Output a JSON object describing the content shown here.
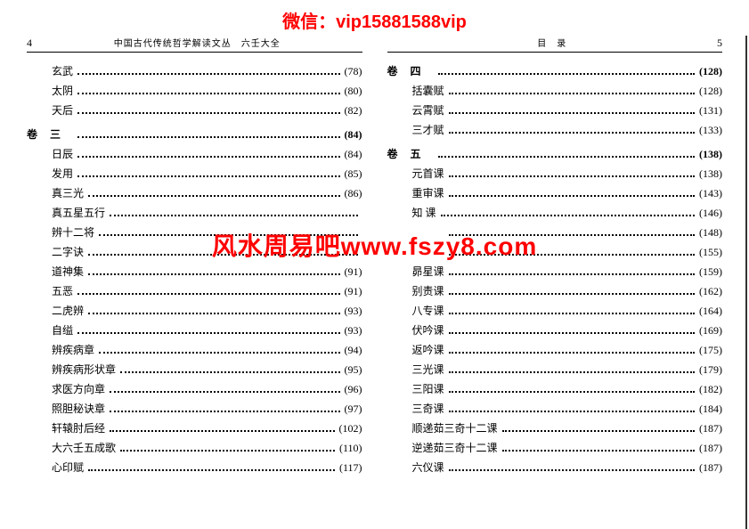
{
  "watermarks": {
    "top": "微信：vip15881588vip",
    "mid": "风水周易吧www.fszy8.com"
  },
  "left_page": {
    "num": "4",
    "header": "中国古代传统哲学解读文丛　六壬大全",
    "sections": [
      {
        "heading": null,
        "items": [
          {
            "label": "玄武",
            "page": "(78)"
          },
          {
            "label": "太阴",
            "page": "(80)"
          },
          {
            "label": "天后",
            "page": "(82)"
          }
        ]
      },
      {
        "heading": {
          "label": "卷三",
          "page": "(84)"
        },
        "items": [
          {
            "label": "日辰",
            "page": "(84)"
          },
          {
            "label": "发用",
            "page": "(85)"
          },
          {
            "label": "真三光",
            "page": "(86)"
          },
          {
            "label": "真五星五行",
            "page": " "
          },
          {
            "label": "辨十二将",
            "page": " "
          },
          {
            "label": "二字诀",
            "page": " "
          },
          {
            "label": "道神集",
            "page": "(91)"
          },
          {
            "label": "五恶",
            "page": "(91)"
          },
          {
            "label": "二虎辨",
            "page": "(93)"
          },
          {
            "label": "自缢",
            "page": "(93)"
          },
          {
            "label": "辨疾病章",
            "page": "(94)"
          },
          {
            "label": "辨疾病形状章",
            "page": "(95)"
          },
          {
            "label": "求医方向章",
            "page": "(96)"
          },
          {
            "label": "照胆秘诀章",
            "page": "(97)"
          },
          {
            "label": "轩辕肘后经",
            "page": "(102)"
          },
          {
            "label": "大六壬五成歌",
            "page": "(110)"
          },
          {
            "label": "心印赋",
            "page": "(117)"
          }
        ]
      }
    ]
  },
  "right_page": {
    "num": "5",
    "header": "目　录",
    "sections": [
      {
        "heading": {
          "label": "卷四",
          "page": "(128)"
        },
        "items": [
          {
            "label": "括囊赋",
            "page": "(128)"
          },
          {
            "label": "云霄赋",
            "page": "(131)"
          },
          {
            "label": "三才赋",
            "page": "(133)"
          }
        ]
      },
      {
        "heading": {
          "label": "卷五",
          "page": "(138)"
        },
        "items": [
          {
            "label": "元首课",
            "page": "(138)"
          },
          {
            "label": "重审课",
            "page": "(143)"
          },
          {
            "label": "知 课",
            "page": "(146)"
          },
          {
            "label": "　　　",
            "page": "(148)"
          },
          {
            "label": "　　　",
            "page": "(155)"
          },
          {
            "label": "昴星课",
            "page": "(159)"
          },
          {
            "label": "别责课",
            "page": "(162)"
          },
          {
            "label": "八专课",
            "page": "(164)"
          },
          {
            "label": "伏吟课",
            "page": "(169)"
          },
          {
            "label": "返吟课",
            "page": "(175)"
          },
          {
            "label": "三光课",
            "page": "(179)"
          },
          {
            "label": "三阳课",
            "page": "(182)"
          },
          {
            "label": "三奇课",
            "page": "(184)"
          },
          {
            "label": "顺递茹三奇十二课",
            "page": "(187)"
          },
          {
            "label": "逆递茹三奇十二课",
            "page": "(187)"
          },
          {
            "label": "六仪课",
            "page": "(187)"
          }
        ]
      }
    ]
  }
}
